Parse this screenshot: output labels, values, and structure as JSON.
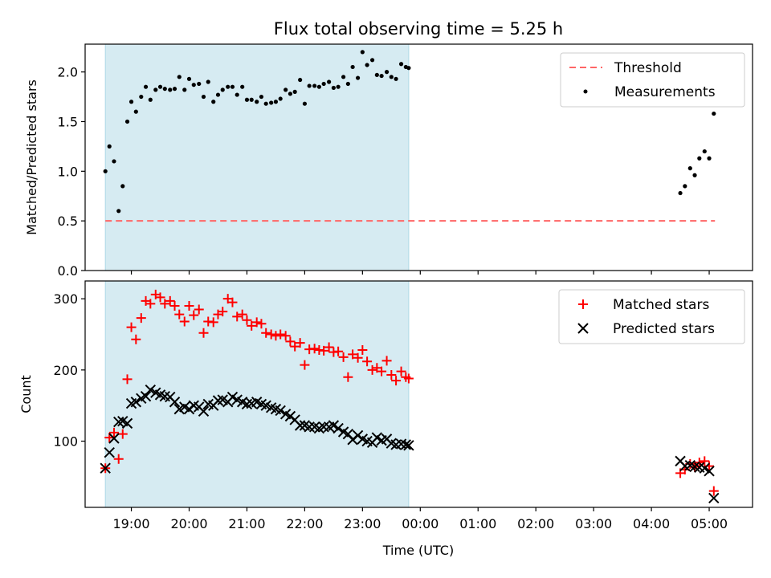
{
  "chart_data": [
    {
      "type": "scatter",
      "title": "Flux total observing time = 5.25 h",
      "xlabel": "",
      "ylabel": "Matched/Predicted stars",
      "ylim": [
        0,
        2.28
      ],
      "yticks": [
        "0.0",
        "0.5",
        "1.0",
        "1.5",
        "2.0"
      ],
      "shaded_span_hours": [
        18.55,
        23.8
      ],
      "shaded_color": "#add8e6",
      "legend_position": "upper right",
      "threshold": {
        "name": "Threshold",
        "y": 0.5,
        "x": [
          18.55,
          5.1
        ],
        "color": "#ff6666",
        "style": "dashed"
      },
      "series": [
        {
          "name": "Measurements",
          "color": "#000000",
          "marker": "dot",
          "x": [
            18.55,
            18.62,
            18.7,
            18.78,
            18.85,
            18.93,
            19.0,
            19.08,
            19.17,
            19.25,
            19.33,
            19.42,
            19.5,
            19.58,
            19.67,
            19.75,
            19.83,
            19.92,
            20.0,
            20.08,
            20.17,
            20.25,
            20.33,
            20.42,
            20.5,
            20.58,
            20.67,
            20.75,
            20.83,
            20.92,
            21.0,
            21.08,
            21.17,
            21.25,
            21.33,
            21.42,
            21.5,
            21.58,
            21.67,
            21.75,
            21.83,
            21.92,
            22.0,
            22.08,
            22.17,
            22.25,
            22.33,
            22.42,
            22.5,
            22.58,
            22.67,
            22.75,
            22.83,
            22.92,
            23.0,
            23.08,
            23.17,
            23.25,
            23.33,
            23.42,
            23.5,
            23.58,
            23.67,
            23.75,
            23.8,
            4.5,
            4.58,
            4.67,
            4.75,
            4.83,
            4.92,
            5.0,
            5.08
          ],
          "y": [
            1.0,
            1.25,
            1.1,
            0.6,
            0.85,
            1.5,
            1.7,
            1.6,
            1.75,
            1.85,
            1.72,
            1.82,
            1.85,
            1.83,
            1.82,
            1.83,
            1.95,
            1.82,
            1.93,
            1.87,
            1.88,
            1.75,
            1.9,
            1.7,
            1.77,
            1.82,
            1.85,
            1.85,
            1.77,
            1.85,
            1.72,
            1.72,
            1.7,
            1.75,
            1.68,
            1.69,
            1.7,
            1.73,
            1.82,
            1.78,
            1.8,
            1.92,
            1.68,
            1.86,
            1.86,
            1.85,
            1.88,
            1.9,
            1.84,
            1.85,
            1.95,
            1.88,
            2.05,
            1.94,
            2.2,
            2.07,
            2.12,
            1.97,
            1.96,
            2.0,
            1.95,
            1.93,
            2.08,
            2.05,
            2.04,
            0.78,
            0.85,
            1.03,
            0.96,
            1.13,
            1.2,
            1.13,
            1.58
          ]
        }
      ]
    },
    {
      "type": "scatter",
      "title": "",
      "xlabel": "Time (UTC)",
      "ylabel": "Count",
      "ylim": [
        7,
        325
      ],
      "yticks": [
        "100",
        "200",
        "300"
      ],
      "xticks": [
        "19:00",
        "20:00",
        "21:00",
        "22:00",
        "23:00",
        "00:00",
        "01:00",
        "02:00",
        "03:00",
        "04:00",
        "05:00"
      ],
      "shaded_span_hours": [
        18.55,
        23.8
      ],
      "shaded_color": "#add8e6",
      "legend_position": "upper right",
      "series": [
        {
          "name": "Matched stars",
          "color": "#ff0000",
          "marker": "plus",
          "x": [
            18.55,
            18.62,
            18.7,
            18.78,
            18.85,
            18.93,
            19.0,
            19.08,
            19.17,
            19.25,
            19.33,
            19.42,
            19.5,
            19.58,
            19.67,
            19.75,
            19.83,
            19.92,
            20.0,
            20.08,
            20.17,
            20.25,
            20.33,
            20.42,
            20.5,
            20.58,
            20.67,
            20.75,
            20.83,
            20.92,
            21.0,
            21.08,
            21.17,
            21.25,
            21.33,
            21.42,
            21.5,
            21.58,
            21.67,
            21.75,
            21.83,
            21.92,
            22.0,
            22.08,
            22.17,
            22.25,
            22.33,
            22.42,
            22.5,
            22.58,
            22.67,
            22.75,
            22.83,
            22.92,
            23.0,
            23.08,
            23.17,
            23.25,
            23.33,
            23.42,
            23.5,
            23.58,
            23.67,
            23.75,
            23.8,
            4.5,
            4.58,
            4.67,
            4.75,
            4.83,
            4.92,
            5.0,
            5.08
          ],
          "y": [
            62,
            105,
            112,
            75,
            110,
            187,
            260,
            243,
            273,
            297,
            293,
            306,
            302,
            293,
            297,
            290,
            278,
            268,
            290,
            277,
            285,
            252,
            268,
            267,
            278,
            282,
            300,
            295,
            275,
            278,
            270,
            262,
            267,
            265,
            252,
            250,
            248,
            250,
            248,
            240,
            233,
            238,
            207,
            229,
            230,
            228,
            227,
            232,
            225,
            226,
            218,
            190,
            222,
            217,
            228,
            212,
            200,
            203,
            198,
            213,
            193,
            185,
            198,
            190,
            188,
            55,
            60,
            68,
            64,
            70,
            72,
            65,
            30
          ]
        },
        {
          "name": "Predicted stars",
          "color": "#000000",
          "marker": "x",
          "x": [
            18.55,
            18.62,
            18.7,
            18.78,
            18.85,
            18.93,
            19.0,
            19.08,
            19.17,
            19.25,
            19.33,
            19.42,
            19.5,
            19.58,
            19.67,
            19.75,
            19.83,
            19.92,
            20.0,
            20.08,
            20.17,
            20.25,
            20.33,
            20.42,
            20.5,
            20.58,
            20.67,
            20.75,
            20.83,
            20.92,
            21.0,
            21.08,
            21.17,
            21.25,
            21.33,
            21.42,
            21.5,
            21.58,
            21.67,
            21.75,
            21.83,
            21.92,
            22.0,
            22.08,
            22.17,
            22.25,
            22.33,
            22.42,
            22.5,
            22.58,
            22.67,
            22.75,
            22.83,
            22.92,
            23.0,
            23.08,
            23.17,
            23.25,
            23.33,
            23.42,
            23.5,
            23.58,
            23.67,
            23.75,
            23.8,
            4.5,
            4.58,
            4.67,
            4.75,
            4.83,
            4.92,
            5.0,
            5.08
          ],
          "y": [
            62,
            84,
            104,
            127,
            128,
            125,
            153,
            155,
            160,
            163,
            172,
            168,
            165,
            163,
            162,
            155,
            145,
            148,
            145,
            150,
            148,
            142,
            152,
            150,
            157,
            158,
            155,
            162,
            158,
            155,
            152,
            153,
            155,
            152,
            150,
            147,
            145,
            143,
            138,
            135,
            130,
            122,
            122,
            120,
            120,
            118,
            120,
            120,
            122,
            118,
            113,
            110,
            102,
            108,
            103,
            100,
            98,
            105,
            101,
            103,
            97,
            95,
            96,
            95,
            94,
            72,
            65,
            66,
            64,
            63,
            62,
            58,
            20
          ]
        }
      ]
    }
  ]
}
